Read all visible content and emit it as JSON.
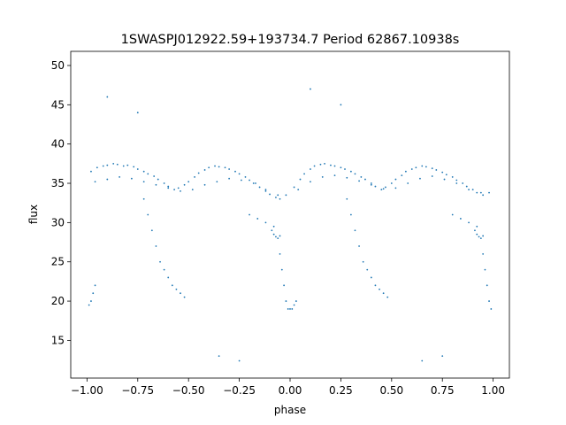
{
  "chart_data": {
    "type": "scatter",
    "title": "1SWASPJ012922.59+193734.7 Period 62867.10938s",
    "xlabel": "phase",
    "ylabel": "flux",
    "xlim": [
      -1.08,
      1.08
    ],
    "ylim": [
      10.2,
      51.8
    ],
    "x_ticks": [
      -1.0,
      -0.75,
      -0.5,
      -0.25,
      0.0,
      0.25,
      0.5,
      0.75,
      1.0
    ],
    "x_tick_labels": [
      "−1.00",
      "−0.75",
      "−0.50",
      "−0.25",
      "0.00",
      "0.25",
      "0.50",
      "0.75",
      "1.00"
    ],
    "y_ticks": [
      15,
      20,
      25,
      30,
      35,
      40,
      45,
      50
    ],
    "y_tick_labels": [
      "15",
      "20",
      "25",
      "30",
      "35",
      "40",
      "45",
      "50"
    ],
    "grid": false,
    "point_color": "#1f77b4",
    "series": [
      {
        "x": [
          -0.98,
          -0.95,
          -0.92,
          -0.9,
          -0.87,
          -0.85,
          -0.82,
          -0.8,
          -0.77,
          -0.75,
          -0.72,
          -0.7,
          -0.67,
          -0.65,
          -0.62,
          -0.6,
          -0.57,
          -0.55,
          -0.52,
          -0.5,
          -0.47,
          -0.45,
          -0.42,
          -0.4,
          -0.37,
          -0.35,
          -0.32,
          -0.3,
          -0.27,
          -0.25,
          -0.22,
          -0.2,
          -0.17,
          -0.15,
          -0.12,
          -0.1,
          -0.07,
          -0.05,
          -0.02,
          0.02,
          0.05,
          0.07,
          0.1,
          0.12,
          0.15,
          0.17,
          0.2,
          0.22,
          0.25,
          0.27,
          0.3,
          0.32,
          0.35,
          0.37,
          0.4,
          0.42,
          0.45,
          0.47,
          0.5,
          0.52,
          0.55,
          0.57,
          0.6,
          0.62,
          0.65,
          0.67,
          0.7,
          0.72,
          0.75,
          0.77,
          0.8,
          0.82,
          0.85,
          0.87,
          0.9,
          0.92,
          0.95,
          0.98,
          -0.96,
          -0.9,
          -0.84,
          -0.78,
          -0.72,
          -0.66,
          -0.6,
          -0.54,
          -0.48,
          -0.42,
          -0.36,
          -0.3,
          -0.24,
          -0.18,
          -0.12,
          -0.06,
          0.04,
          0.1,
          0.16,
          0.22,
          0.28,
          0.34,
          0.4,
          0.46,
          0.52,
          0.58,
          0.64,
          0.7,
          0.76,
          0.82,
          0.88,
          0.94,
          -0.72,
          -0.7,
          -0.68,
          -0.66,
          -0.64,
          -0.62,
          -0.6,
          -0.58,
          -0.56,
          -0.54,
          -0.52,
          0.28,
          0.3,
          0.32,
          0.34,
          0.36,
          0.38,
          0.4,
          0.42,
          0.44,
          0.46,
          0.48,
          -0.05,
          -0.04,
          -0.03,
          -0.02,
          -0.01,
          0.0,
          0.01,
          0.02,
          0.03,
          0.95,
          0.96,
          0.97,
          0.98,
          0.99,
          -0.99,
          -0.98,
          -0.97,
          -0.96,
          -0.09,
          -0.08,
          -0.07,
          -0.06,
          -0.05,
          0.91,
          0.92,
          0.93,
          0.94,
          0.95,
          -0.2,
          -0.16,
          -0.12,
          -0.08,
          0.8,
          0.84,
          0.88,
          0.92,
          -0.25,
          -0.35,
          0.65,
          0.75,
          -0.9,
          0.1,
          -0.75,
          0.25
        ],
        "y": [
          36.5,
          37,
          37.2,
          37.3,
          37.5,
          37.4,
          37.2,
          37.3,
          37.1,
          36.8,
          36.5,
          36.2,
          35.9,
          35.5,
          35,
          34.6,
          34.2,
          34.4,
          34.8,
          35.2,
          35.8,
          36.3,
          36.7,
          37,
          37.2,
          37.1,
          37,
          36.8,
          36.5,
          36.2,
          35.8,
          35.4,
          35,
          34.5,
          34,
          33.6,
          33.2,
          33,
          33.5,
          34.5,
          35.5,
          36.2,
          36.8,
          37.2,
          37.4,
          37.5,
          37.3,
          37.2,
          37,
          36.8,
          36.5,
          36.2,
          35.8,
          35.5,
          35,
          34.6,
          34.2,
          34.5,
          35,
          35.5,
          36,
          36.5,
          36.8,
          37,
          37.2,
          37.1,
          36.9,
          36.7,
          36.4,
          36.1,
          35.8,
          35.4,
          35,
          34.6,
          34.2,
          33.8,
          33.5,
          33.8,
          35.2,
          35.5,
          35.8,
          35.6,
          35.2,
          34.8,
          34.4,
          34,
          34.2,
          34.8,
          35.2,
          35.6,
          35.4,
          35,
          34.2,
          33.5,
          34.2,
          35.2,
          35.8,
          36,
          35.7,
          35.3,
          34.8,
          34.3,
          34.4,
          35,
          35.6,
          35.9,
          35.5,
          35,
          34.2,
          33.8,
          33,
          31,
          29,
          27,
          25,
          24,
          23,
          22,
          21.5,
          21,
          20.5,
          33,
          31,
          29,
          27,
          25,
          24,
          23,
          22,
          21.5,
          21,
          20.5,
          26,
          24,
          22,
          20,
          19,
          19,
          19,
          19.5,
          20,
          26,
          24,
          22,
          20,
          19,
          19.5,
          20,
          21,
          22,
          29,
          28.5,
          28.2,
          28,
          28.3,
          29,
          28.5,
          28.2,
          28,
          28.3,
          31,
          30.5,
          30,
          29.5,
          31,
          30.5,
          30,
          29.5,
          12.4,
          13,
          12.4,
          13,
          46,
          47,
          44,
          45
        ]
      }
    ]
  }
}
